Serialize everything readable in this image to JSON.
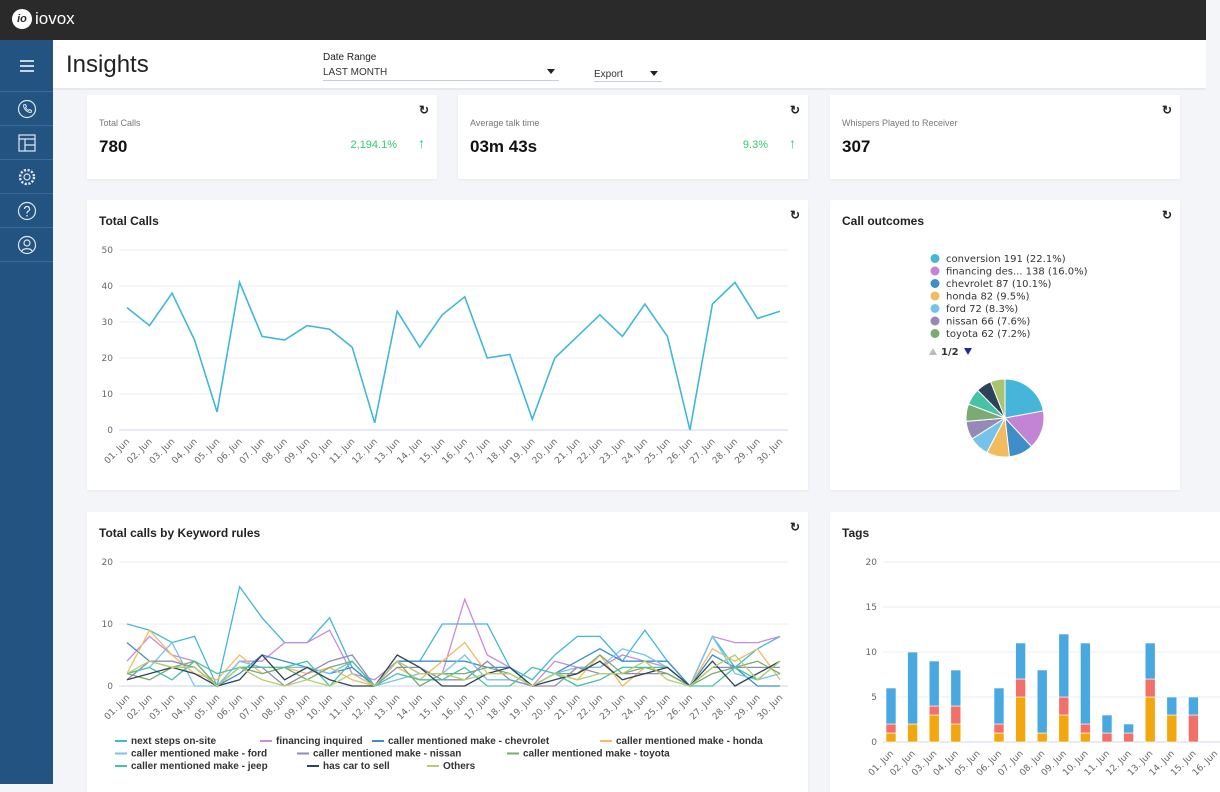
{
  "app": {
    "brand": "iovox",
    "brand_mark": "io"
  },
  "sidebar": {
    "items": [
      {
        "icon": "menu-icon"
      },
      {
        "icon": "phone-icon"
      },
      {
        "icon": "layout-icon"
      },
      {
        "icon": "gear-icon"
      },
      {
        "icon": "help-icon"
      },
      {
        "icon": "user-icon"
      }
    ]
  },
  "header": {
    "title": "Insights",
    "date_range_label": "Date Range",
    "date_range_value": "LAST MONTH",
    "export_label": "Export"
  },
  "kpis": [
    {
      "label": "Total Calls",
      "value": "780",
      "change": "2,194.1%",
      "trend": "up"
    },
    {
      "label": "Average talk time",
      "value": "03m 43s",
      "change": "9.3%",
      "trend": "up"
    },
    {
      "label": "Whispers Played to Receiver",
      "value": "307"
    }
  ],
  "colors": {
    "positive": "#2ecc71",
    "sidebar": "#235380",
    "line": "#3fb8d8"
  },
  "chart_data": [
    {
      "title": "Total Calls",
      "type": "line",
      "ylim": [
        0,
        50
      ],
      "yticks": [
        0,
        10,
        20,
        30,
        40,
        50
      ],
      "categories": [
        "01. Jun",
        "02. Jun",
        "03. Jun",
        "04. Jun",
        "05. Jun",
        "06. Jun",
        "07. Jun",
        "08. Jun",
        "09. Jun",
        "10. Jun",
        "11. Jun",
        "12. Jun",
        "13. Jun",
        "14. Jun",
        "15. Jun",
        "16. Jun",
        "17. Jun",
        "18. Jun",
        "19. Jun",
        "20. Jun",
        "21. Jun",
        "22. Jun",
        "23. Jun",
        "24. Jun",
        "25. Jun",
        "26. Jun",
        "27. Jun",
        "28. Jun",
        "29. Jun",
        "30. Jun"
      ],
      "series": [
        {
          "color": "#3fb8d8",
          "values": [
            34,
            29,
            38,
            25,
            5,
            41,
            26,
            25,
            29,
            28,
            23,
            2,
            33,
            23,
            32,
            37,
            20,
            21,
            3,
            20,
            26,
            32,
            26,
            35,
            26,
            0,
            35,
            41,
            31,
            33
          ]
        }
      ],
      "grid": true
    },
    {
      "title": "Call outcomes",
      "type": "pie",
      "pager": "1/2",
      "slices": [
        {
          "name": "conversion",
          "count": 191,
          "pct": 22.1,
          "label": "conversion 191 (22.1%)",
          "color": "#45b6d9"
        },
        {
          "name": "financing des...",
          "count": 138,
          "pct": 16.0,
          "label": "financing des... 138 (16.0%)",
          "color": "#c384d6"
        },
        {
          "name": "chevrolet",
          "count": 87,
          "pct": 10.1,
          "label": "chevrolet 87 (10.1%)",
          "color": "#3e8fc7"
        },
        {
          "name": "honda",
          "count": 82,
          "pct": 9.5,
          "label": "honda 82 (9.5%)",
          "color": "#f2bb5e"
        },
        {
          "name": "ford",
          "count": 72,
          "pct": 8.3,
          "label": "ford 72 (8.3%)",
          "color": "#76c3ea"
        },
        {
          "name": "nissan",
          "count": 66,
          "pct": 7.6,
          "label": "nissan 66 (7.6%)",
          "color": "#9689b5"
        },
        {
          "name": "toyota",
          "count": 62,
          "pct": 7.2,
          "label": "toyota 62 (7.2%)",
          "color": "#7aab72"
        },
        {
          "pct": 6.8,
          "color": "#46c2a5"
        },
        {
          "pct": 6.4,
          "color": "#2d4358"
        },
        {
          "pct": 6.0,
          "color": "#a9c46e"
        }
      ]
    },
    {
      "title": "Total calls by Keyword rules",
      "type": "line",
      "ylim": [
        0,
        20
      ],
      "yticks": [
        0,
        10,
        20
      ],
      "grid": true,
      "legend": "bottom",
      "series": [
        {
          "name": "next steps on-site",
          "color": "#3fb8d8",
          "values": [
            10,
            9,
            7,
            8,
            0,
            16,
            11,
            7,
            7,
            11,
            3,
            0,
            4,
            4,
            10,
            10,
            10,
            3,
            1,
            5,
            8,
            8,
            4,
            9,
            4,
            0,
            8,
            3,
            6,
            8
          ]
        },
        {
          "name": "financing inquired",
          "color": "#c98bdc",
          "values": [
            4,
            8,
            5,
            4,
            0,
            4,
            4,
            7,
            7,
            9,
            2,
            1,
            4,
            2,
            2,
            14,
            5,
            3,
            0,
            4,
            3,
            3,
            5,
            4,
            3,
            0,
            8,
            7,
            7,
            8
          ]
        },
        {
          "name": "caller mentioned make - chevrolet",
          "color": "#3e8fc7",
          "values": [
            7,
            4,
            3,
            3,
            0,
            2,
            5,
            4,
            3,
            2,
            3,
            0,
            4,
            4,
            4,
            4,
            3,
            3,
            0,
            2,
            4,
            6,
            4,
            4,
            4,
            0,
            5,
            3,
            0,
            0
          ]
        },
        {
          "name": "caller mentioned make - honda",
          "color": "#f2bb5e",
          "values": [
            2,
            9,
            5,
            2,
            1,
            5,
            2,
            3,
            2,
            3,
            1,
            0,
            3,
            1,
            4,
            7,
            2,
            2,
            0,
            2,
            1,
            5,
            0,
            3,
            2,
            0,
            6,
            4,
            6,
            1
          ]
        },
        {
          "name": "caller mentioned make - ford",
          "color": "#76c3ea",
          "values": [
            2,
            3,
            7,
            0,
            0,
            4,
            3,
            3,
            3,
            2,
            4,
            0,
            1,
            2,
            2,
            5,
            1,
            1,
            0,
            2,
            3,
            3,
            6,
            5,
            3,
            0,
            8,
            2,
            1,
            2
          ]
        },
        {
          "name": "caller mentioned make - nissan",
          "color": "#9689b5",
          "values": [
            1,
            4,
            4,
            3,
            0,
            3,
            3,
            0,
            2,
            4,
            5,
            0,
            3,
            3,
            1,
            1,
            4,
            1,
            0,
            0,
            3,
            2,
            2,
            2,
            2,
            0,
            3,
            3,
            3,
            3
          ]
        },
        {
          "name": "caller mentioned make - toyota",
          "color": "#7aab72",
          "values": [
            2,
            1,
            3,
            4,
            0,
            3,
            2,
            3,
            1,
            3,
            4,
            0,
            4,
            0,
            2,
            2,
            3,
            2,
            0,
            2,
            2,
            5,
            2,
            3,
            2,
            0,
            2,
            3,
            4,
            2
          ]
        },
        {
          "name": "caller mentioned make - jeep",
          "color": "#46c2a5",
          "values": [
            2,
            3,
            1,
            4,
            2,
            3,
            3,
            3,
            4,
            0,
            4,
            0,
            2,
            1,
            1,
            3,
            0,
            0,
            3,
            2,
            0,
            1,
            3,
            3,
            3,
            0,
            0,
            3,
            1,
            4
          ]
        },
        {
          "name": "has car to sell",
          "color": "#2d4358",
          "values": [
            1,
            2,
            3,
            2,
            0,
            1,
            5,
            1,
            3,
            1,
            0,
            0,
            5,
            3,
            0,
            0,
            2,
            3,
            0,
            1,
            2,
            4,
            1,
            2,
            3,
            0,
            4,
            0,
            2,
            4
          ]
        },
        {
          "name": "Others",
          "color": "#b5cf6b",
          "values": [
            2,
            4,
            3,
            3,
            0,
            3,
            1,
            0,
            1,
            0,
            2,
            0,
            4,
            2,
            2,
            1,
            2,
            2,
            0,
            2,
            1,
            2,
            2,
            4,
            1,
            0,
            3,
            5,
            1,
            4
          ]
        }
      ]
    },
    {
      "title": "Tags",
      "type": "bar",
      "stacked": true,
      "ylim": [
        0,
        20
      ],
      "yticks": [
        0,
        5,
        10,
        15,
        20
      ],
      "grid": true,
      "categories": [
        "01. Jun",
        "02. Jun",
        "03. Jun",
        "04. Jun",
        "05. Jun",
        "06. Jun",
        "07. Jun",
        "08. Jun",
        "09. Jun",
        "10. Jun",
        "11. Jun",
        "12. Jun",
        "13. Jun",
        "14. Jun",
        "15. Jun",
        "16. Jun"
      ],
      "series": [
        {
          "color": "#f2a70e",
          "values": [
            1,
            2,
            3,
            2,
            0,
            1,
            5,
            1,
            3,
            1,
            0,
            0,
            5,
            3,
            0,
            null
          ]
        },
        {
          "color": "#f2706a",
          "values": [
            1,
            0,
            1,
            2,
            0,
            1,
            2,
            0,
            2,
            1,
            1,
            1,
            2,
            0,
            3,
            null
          ]
        },
        {
          "color": "#4aa8e0",
          "values": [
            4,
            8,
            5,
            4,
            0,
            4,
            4,
            7,
            7,
            9,
            2,
            1,
            4,
            2,
            2,
            null
          ]
        }
      ]
    }
  ]
}
